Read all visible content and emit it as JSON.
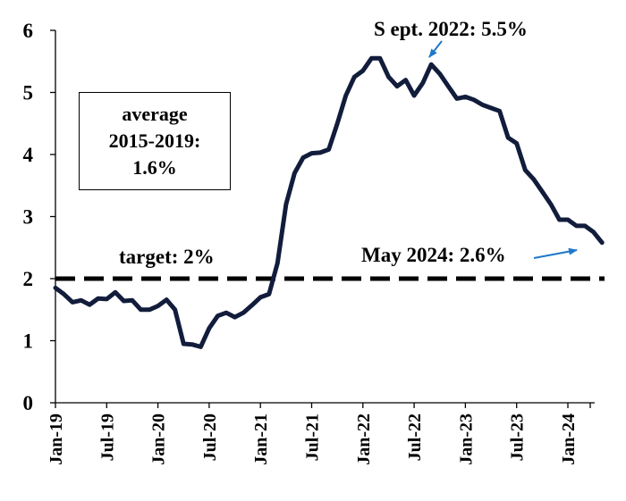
{
  "chart_data": {
    "type": "line",
    "x_tick_labels": [
      "Jan-19",
      "Jul-19",
      "Jan-20",
      "Jul-20",
      "Jan-21",
      "Jul-21",
      "Jan-22",
      "Jul-22",
      "Jan-23",
      "Jul-23",
      "Jan-24"
    ],
    "y_ticks": [
      "0",
      "1",
      "2",
      "3",
      "4",
      "5",
      "6"
    ],
    "ylim": [
      0,
      6
    ],
    "grid": false,
    "series": [
      {
        "x": [
          "Jan-19",
          "Feb-19",
          "Mar-19",
          "Apr-19",
          "May-19",
          "Jun-19",
          "Jul-19",
          "Aug-19",
          "Sep-19",
          "Oct-19",
          "Nov-19",
          "Dec-19",
          "Jan-20",
          "Feb-20",
          "Mar-20",
          "Apr-20",
          "May-20",
          "Jun-20",
          "Jul-20",
          "Aug-20",
          "Sep-20",
          "Oct-20",
          "Nov-20",
          "Dec-20",
          "Jan-21",
          "Feb-21",
          "Mar-21",
          "Apr-21",
          "May-21",
          "Jun-21",
          "Jul-21",
          "Aug-21",
          "Sep-21",
          "Oct-21",
          "Nov-21",
          "Dec-21",
          "Jan-22",
          "Feb-22",
          "Mar-22",
          "Apr-22",
          "May-22",
          "Jun-22",
          "Jul-22",
          "Aug-22",
          "Sep-22",
          "Oct-22",
          "Nov-22",
          "Dec-22",
          "Jan-23",
          "Feb-23",
          "Mar-23",
          "Apr-23",
          "May-23",
          "Jun-23",
          "Jul-23",
          "Aug-23",
          "Sep-23",
          "Oct-23",
          "Nov-23",
          "Dec-23",
          "Jan-24",
          "Feb-24",
          "Mar-24",
          "Apr-24",
          "May-24"
        ],
        "values": [
          1.85,
          1.75,
          1.62,
          1.65,
          1.58,
          1.68,
          1.67,
          1.78,
          1.64,
          1.65,
          1.5,
          1.5,
          1.56,
          1.66,
          1.5,
          0.95,
          0.94,
          0.9,
          1.2,
          1.4,
          1.45,
          1.38,
          1.45,
          1.57,
          1.7,
          1.75,
          2.25,
          3.2,
          3.7,
          3.95,
          4.02,
          4.03,
          4.08,
          4.5,
          4.95,
          5.25,
          5.35,
          5.55,
          5.55,
          5.25,
          5.1,
          5.2,
          4.95,
          5.15,
          5.45,
          5.3,
          5.1,
          4.9,
          4.93,
          4.88,
          4.8,
          4.75,
          4.7,
          4.27,
          4.18,
          3.75,
          3.6,
          3.4,
          3.2,
          2.95,
          2.95,
          2.85,
          2.85,
          2.75,
          2.58
        ],
        "color": "#121c3b"
      }
    ],
    "reference_line": {
      "value": 2.0,
      "style": "dashed",
      "color": "#000000"
    },
    "annotations": {
      "average_box_lines": [
        "average",
        "2015-2019:",
        "1.6%"
      ],
      "target_label": "target: 2%",
      "peak_label": "S ept. 2022: 5.5%",
      "latest_label": "May 2024: 2.6%",
      "arrow_color": "#1f78c8"
    }
  }
}
